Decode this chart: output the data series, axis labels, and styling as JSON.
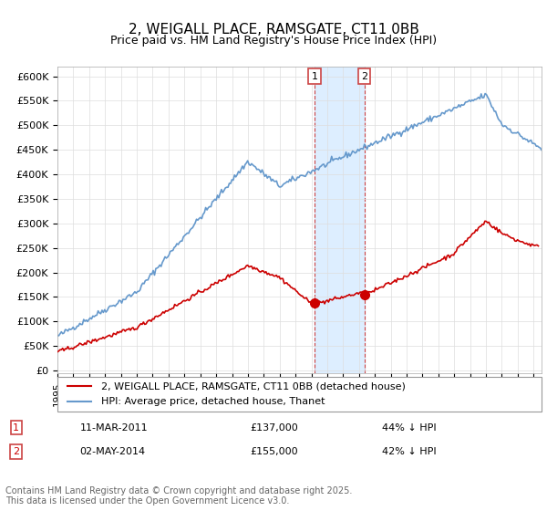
{
  "title": "2, WEIGALL PLACE, RAMSGATE, CT11 0BB",
  "subtitle": "Price paid vs. HM Land Registry's House Price Index (HPI)",
  "ylabel_format": "£{0}K",
  "yticks": [
    0,
    50000,
    100000,
    150000,
    200000,
    250000,
    300000,
    350000,
    400000,
    450000,
    500000,
    550000,
    600000
  ],
  "ylim": [
    -5000,
    620000
  ],
  "xlim_start": 1995.0,
  "xlim_end": 2025.5,
  "transaction1_date": 2011.19,
  "transaction1_price": 137000,
  "transaction1_label": "1",
  "transaction1_text": "11-MAR-2011",
  "transaction1_price_text": "£137,000",
  "transaction1_hpi_text": "44% ↓ HPI",
  "transaction2_date": 2014.33,
  "transaction2_price": 155000,
  "transaction2_label": "2",
  "transaction2_text": "02-MAY-2014",
  "transaction2_price_text": "£155,000",
  "transaction2_hpi_text": "42% ↓ HPI",
  "hpi_color": "#6699cc",
  "price_color": "#cc0000",
  "transaction_marker_color": "#cc0000",
  "shaded_region_color": "#ddeeff",
  "legend_label_price": "2, WEIGALL PLACE, RAMSGATE, CT11 0BB (detached house)",
  "legend_label_hpi": "HPI: Average price, detached house, Thanet",
  "footer_text": "Contains HM Land Registry data © Crown copyright and database right 2025.\nThis data is licensed under the Open Government Licence v3.0.",
  "title_fontsize": 11,
  "subtitle_fontsize": 9,
  "tick_fontsize": 8,
  "legend_fontsize": 8,
  "footer_fontsize": 7
}
